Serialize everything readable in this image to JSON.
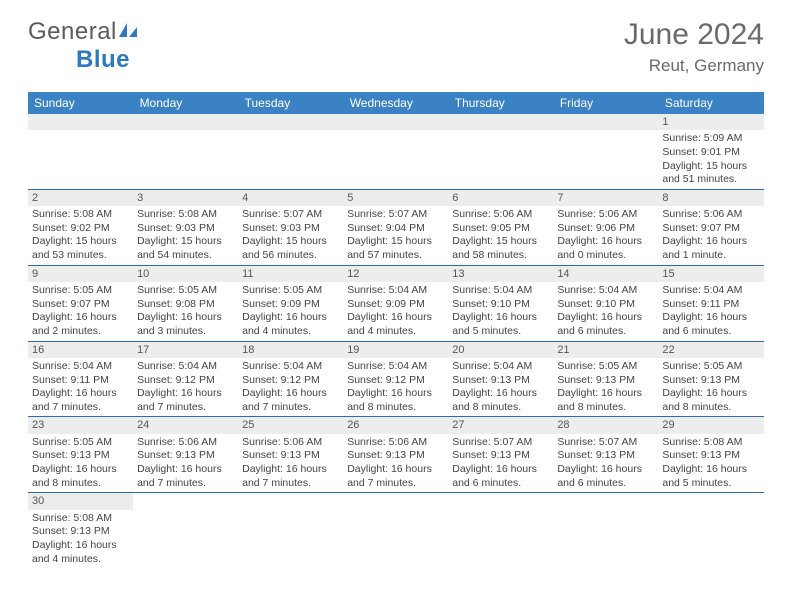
{
  "logo": {
    "text_general": "General",
    "text_blue": "Blue"
  },
  "title": "June 2024",
  "location": "Reut, Germany",
  "colors": {
    "header_bg": "#3a82c4",
    "header_text": "#ffffff",
    "daynum_bg": "#ededed",
    "cell_border": "#2f6aa8",
    "body_text": "#444444",
    "title_text": "#6a6a6a",
    "logo_gray": "#5a5a5a",
    "logo_blue": "#2f7abf"
  },
  "weekdays": [
    "Sunday",
    "Monday",
    "Tuesday",
    "Wednesday",
    "Thursday",
    "Friday",
    "Saturday"
  ],
  "weeks": [
    [
      null,
      null,
      null,
      null,
      null,
      null,
      {
        "d": "1",
        "sr": "Sunrise: 5:09 AM",
        "ss": "Sunset: 9:01 PM",
        "dl": "Daylight: 15 hours and 51 minutes."
      }
    ],
    [
      {
        "d": "2",
        "sr": "Sunrise: 5:08 AM",
        "ss": "Sunset: 9:02 PM",
        "dl": "Daylight: 15 hours and 53 minutes."
      },
      {
        "d": "3",
        "sr": "Sunrise: 5:08 AM",
        "ss": "Sunset: 9:03 PM",
        "dl": "Daylight: 15 hours and 54 minutes."
      },
      {
        "d": "4",
        "sr": "Sunrise: 5:07 AM",
        "ss": "Sunset: 9:03 PM",
        "dl": "Daylight: 15 hours and 56 minutes."
      },
      {
        "d": "5",
        "sr": "Sunrise: 5:07 AM",
        "ss": "Sunset: 9:04 PM",
        "dl": "Daylight: 15 hours and 57 minutes."
      },
      {
        "d": "6",
        "sr": "Sunrise: 5:06 AM",
        "ss": "Sunset: 9:05 PM",
        "dl": "Daylight: 15 hours and 58 minutes."
      },
      {
        "d": "7",
        "sr": "Sunrise: 5:06 AM",
        "ss": "Sunset: 9:06 PM",
        "dl": "Daylight: 16 hours and 0 minutes."
      },
      {
        "d": "8",
        "sr": "Sunrise: 5:06 AM",
        "ss": "Sunset: 9:07 PM",
        "dl": "Daylight: 16 hours and 1 minute."
      }
    ],
    [
      {
        "d": "9",
        "sr": "Sunrise: 5:05 AM",
        "ss": "Sunset: 9:07 PM",
        "dl": "Daylight: 16 hours and 2 minutes."
      },
      {
        "d": "10",
        "sr": "Sunrise: 5:05 AM",
        "ss": "Sunset: 9:08 PM",
        "dl": "Daylight: 16 hours and 3 minutes."
      },
      {
        "d": "11",
        "sr": "Sunrise: 5:05 AM",
        "ss": "Sunset: 9:09 PM",
        "dl": "Daylight: 16 hours and 4 minutes."
      },
      {
        "d": "12",
        "sr": "Sunrise: 5:04 AM",
        "ss": "Sunset: 9:09 PM",
        "dl": "Daylight: 16 hours and 4 minutes."
      },
      {
        "d": "13",
        "sr": "Sunrise: 5:04 AM",
        "ss": "Sunset: 9:10 PM",
        "dl": "Daylight: 16 hours and 5 minutes."
      },
      {
        "d": "14",
        "sr": "Sunrise: 5:04 AM",
        "ss": "Sunset: 9:10 PM",
        "dl": "Daylight: 16 hours and 6 minutes."
      },
      {
        "d": "15",
        "sr": "Sunrise: 5:04 AM",
        "ss": "Sunset: 9:11 PM",
        "dl": "Daylight: 16 hours and 6 minutes."
      }
    ],
    [
      {
        "d": "16",
        "sr": "Sunrise: 5:04 AM",
        "ss": "Sunset: 9:11 PM",
        "dl": "Daylight: 16 hours and 7 minutes."
      },
      {
        "d": "17",
        "sr": "Sunrise: 5:04 AM",
        "ss": "Sunset: 9:12 PM",
        "dl": "Daylight: 16 hours and 7 minutes."
      },
      {
        "d": "18",
        "sr": "Sunrise: 5:04 AM",
        "ss": "Sunset: 9:12 PM",
        "dl": "Daylight: 16 hours and 7 minutes."
      },
      {
        "d": "19",
        "sr": "Sunrise: 5:04 AM",
        "ss": "Sunset: 9:12 PM",
        "dl": "Daylight: 16 hours and 8 minutes."
      },
      {
        "d": "20",
        "sr": "Sunrise: 5:04 AM",
        "ss": "Sunset: 9:13 PM",
        "dl": "Daylight: 16 hours and 8 minutes."
      },
      {
        "d": "21",
        "sr": "Sunrise: 5:05 AM",
        "ss": "Sunset: 9:13 PM",
        "dl": "Daylight: 16 hours and 8 minutes."
      },
      {
        "d": "22",
        "sr": "Sunrise: 5:05 AM",
        "ss": "Sunset: 9:13 PM",
        "dl": "Daylight: 16 hours and 8 minutes."
      }
    ],
    [
      {
        "d": "23",
        "sr": "Sunrise: 5:05 AM",
        "ss": "Sunset: 9:13 PM",
        "dl": "Daylight: 16 hours and 8 minutes."
      },
      {
        "d": "24",
        "sr": "Sunrise: 5:06 AM",
        "ss": "Sunset: 9:13 PM",
        "dl": "Daylight: 16 hours and 7 minutes."
      },
      {
        "d": "25",
        "sr": "Sunrise: 5:06 AM",
        "ss": "Sunset: 9:13 PM",
        "dl": "Daylight: 16 hours and 7 minutes."
      },
      {
        "d": "26",
        "sr": "Sunrise: 5:06 AM",
        "ss": "Sunset: 9:13 PM",
        "dl": "Daylight: 16 hours and 7 minutes."
      },
      {
        "d": "27",
        "sr": "Sunrise: 5:07 AM",
        "ss": "Sunset: 9:13 PM",
        "dl": "Daylight: 16 hours and 6 minutes."
      },
      {
        "d": "28",
        "sr": "Sunrise: 5:07 AM",
        "ss": "Sunset: 9:13 PM",
        "dl": "Daylight: 16 hours and 6 minutes."
      },
      {
        "d": "29",
        "sr": "Sunrise: 5:08 AM",
        "ss": "Sunset: 9:13 PM",
        "dl": "Daylight: 16 hours and 5 minutes."
      }
    ],
    [
      {
        "d": "30",
        "sr": "Sunrise: 5:08 AM",
        "ss": "Sunset: 9:13 PM",
        "dl": "Daylight: 16 hours and 4 minutes."
      },
      null,
      null,
      null,
      null,
      null,
      null
    ]
  ]
}
